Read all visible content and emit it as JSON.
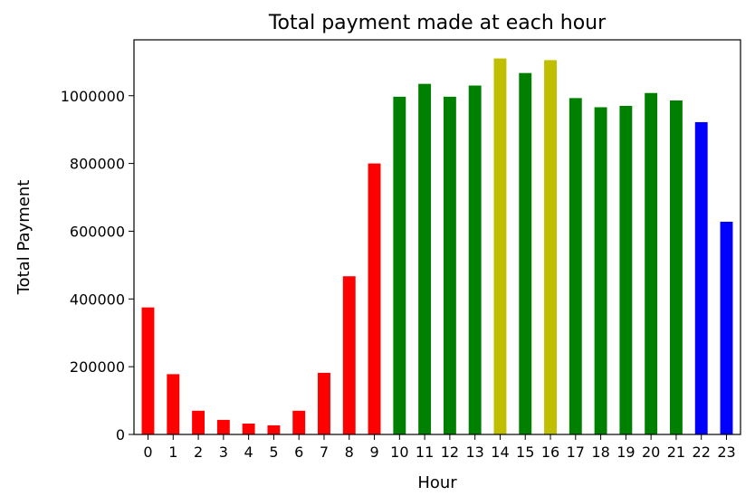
{
  "chart_data": {
    "type": "bar",
    "title": "Total payment made at each hour",
    "xlabel": "Hour",
    "ylabel": "Total Payment",
    "categories": [
      "0",
      "1",
      "2",
      "3",
      "4",
      "5",
      "6",
      "7",
      "8",
      "9",
      "10",
      "11",
      "12",
      "13",
      "14",
      "15",
      "16",
      "17",
      "18",
      "19",
      "20",
      "21",
      "22",
      "23"
    ],
    "values": [
      375000,
      178000,
      70000,
      43000,
      32000,
      27000,
      70000,
      182000,
      467000,
      800000,
      997000,
      1035000,
      997000,
      1030000,
      1110000,
      1067000,
      1105000,
      993000,
      966000,
      970000,
      1008000,
      986000,
      922000,
      628000
    ],
    "colors": [
      "#ff0000",
      "#ff0000",
      "#ff0000",
      "#ff0000",
      "#ff0000",
      "#ff0000",
      "#ff0000",
      "#ff0000",
      "#ff0000",
      "#ff0000",
      "#008000",
      "#008000",
      "#008000",
      "#008000",
      "#bfbf00",
      "#008000",
      "#bfbf00",
      "#008000",
      "#008000",
      "#008000",
      "#008000",
      "#008000",
      "#0000ff",
      "#0000ff"
    ],
    "yticks": [
      0,
      200000,
      400000,
      600000,
      800000,
      1000000
    ],
    "ylim": [
      0,
      1165000
    ],
    "grid": false,
    "legend": "none"
  }
}
